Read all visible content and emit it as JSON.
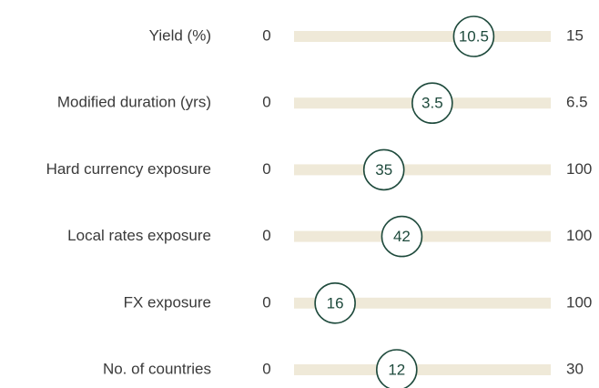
{
  "chart_data": {
    "type": "range",
    "categories": [
      "Yield (%)",
      "Modified duration (yrs)",
      "Hard currency exposure",
      "Local rates exposure",
      "FX exposure",
      "No. of countries"
    ],
    "values": [
      10.5,
      3.5,
      35,
      42,
      16,
      12
    ],
    "mins": [
      0,
      0,
      0,
      0,
      0,
      0
    ],
    "maxes": [
      15,
      6.5,
      100,
      100,
      100,
      30
    ],
    "color": "#efe9d8",
    "marker_color": "#1e4a3c"
  }
}
